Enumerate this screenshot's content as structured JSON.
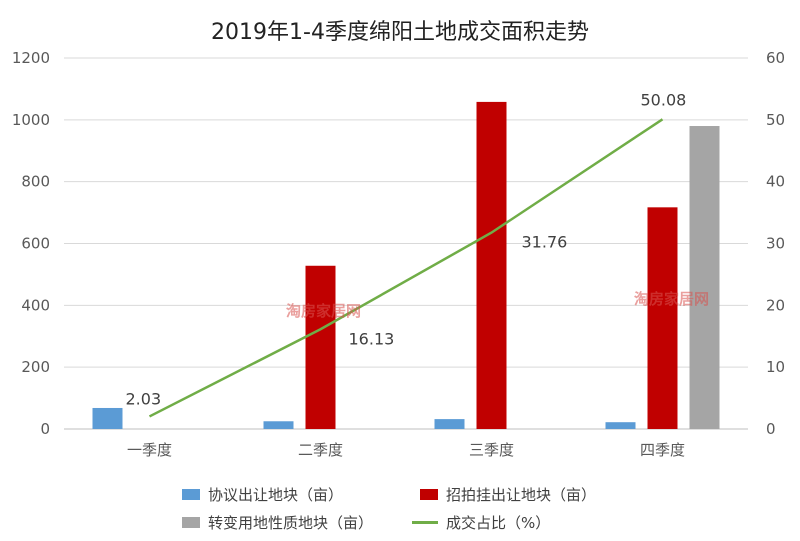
{
  "chart_data": {
    "type": "bar",
    "title": "2019年1-4季度绵阳土地成交面积走势",
    "categories": [
      "一季度",
      "二季度",
      "三季度",
      "四季度"
    ],
    "y_left": {
      "min": 0,
      "max": 1200,
      "ticks": [
        "0",
        "200",
        "400",
        "600",
        "800",
        "1000",
        "1200"
      ]
    },
    "y_right": {
      "min": 0,
      "max": 60,
      "ticks": [
        "0",
        "10",
        "20",
        "30",
        "40",
        "50",
        "60"
      ]
    },
    "series": [
      {
        "name": "协议出让地块（亩）",
        "type": "bar",
        "axis": "left",
        "color": "#5B9BD5",
        "values": [
          68,
          25,
          32,
          22
        ]
      },
      {
        "name": "招拍挂出让地块（亩）",
        "type": "bar",
        "axis": "left",
        "color": "#C00000",
        "values": [
          0,
          528,
          1058,
          717
        ]
      },
      {
        "name": "转变用地性质地块（亩）",
        "type": "bar",
        "axis": "left",
        "color": "#A5A5A5",
        "values": [
          0,
          0,
          0,
          980
        ]
      },
      {
        "name": "成交占比（%）",
        "type": "line",
        "axis": "right",
        "color": "#70AD47",
        "values": [
          2.03,
          16.13,
          31.76,
          50.08
        ],
        "labels": [
          "2.03",
          "16.13",
          "31.76",
          "50.08"
        ]
      }
    ],
    "legend_position": "bottom",
    "grid": true
  },
  "watermark": "淘房家居网"
}
